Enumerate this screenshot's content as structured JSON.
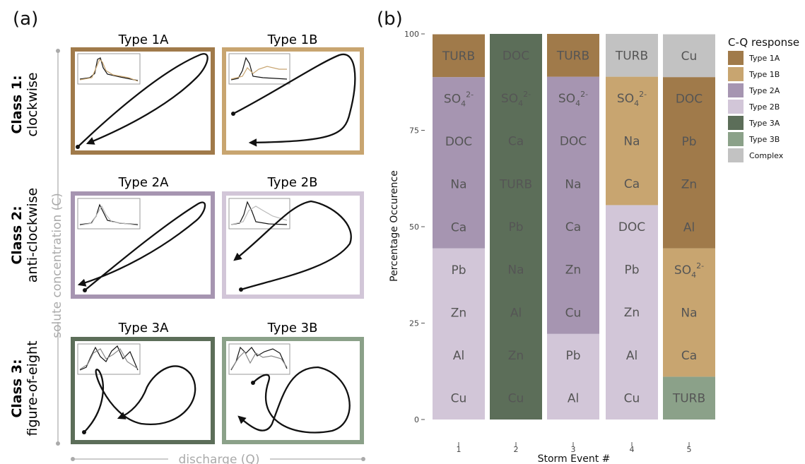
{
  "panel_a": {
    "label": "(a)",
    "y_axis_label": "solute concentration (C)",
    "x_axis_label": "discharge (Q)",
    "classes": [
      {
        "name": "Class 1:",
        "desc": "clockwise",
        "types": [
          {
            "label": "Type 1A",
            "color": "#A07A4A"
          },
          {
            "label": "Type 1B",
            "color": "#C8A570"
          }
        ]
      },
      {
        "name": "Class 2:",
        "desc": "anti-clockwise",
        "types": [
          {
            "label": "Type 2A",
            "color": "#A695B1"
          },
          {
            "label": "Type 2B",
            "color": "#D2C6D8"
          }
        ]
      },
      {
        "name": "Class 3:",
        "desc": "figure-of-eight",
        "types": [
          {
            "label": "Type 3A",
            "color": "#5C6E59"
          },
          {
            "label": "Type 3B",
            "color": "#8BA189"
          }
        ]
      }
    ]
  },
  "panel_b": {
    "label": "(b)",
    "chart_data": {
      "type": "bar",
      "stacked": true,
      "xlabel": "Storm Event #",
      "ylabel": "Percentage Occurence",
      "ylim": [
        0,
        100
      ],
      "yticks": [
        0,
        25,
        50,
        75,
        100
      ],
      "categories": [
        "1",
        "2",
        "3",
        "4",
        "5"
      ],
      "legend": {
        "title": "C-Q response",
        "position": "right",
        "entries": [
          {
            "name": "Type 1A",
            "color": "#A07A4A"
          },
          {
            "name": "Type 1B",
            "color": "#C8A570"
          },
          {
            "name": "Type 2A",
            "color": "#A695B1"
          },
          {
            "name": "Type 2B",
            "color": "#D2C6D8"
          },
          {
            "name": "Type 3A",
            "color": "#5C6E59"
          },
          {
            "name": "Type 3B",
            "color": "#8BA189"
          },
          {
            "name": "Complex",
            "color": "#C2C2C2"
          }
        ]
      },
      "stacks": [
        {
          "event": "1",
          "segments": [
            {
              "type": "Type 2B",
              "value": 44.4,
              "labels": [
                "Cu",
                "Al",
                "Zn",
                "Pb"
              ]
            },
            {
              "type": "Type 2A",
              "value": 44.4,
              "labels": [
                "Ca",
                "Na",
                "DOC",
                "SO4"
              ]
            },
            {
              "type": "Type 1A",
              "value": 11.1,
              "labels": [
                "TURB"
              ]
            }
          ]
        },
        {
          "event": "2",
          "segments": [
            {
              "type": "Type 3A",
              "value": 100,
              "labels": [
                "Cu",
                "Zn",
                "Al",
                "Na",
                "Pb",
                "TURB",
                "Ca",
                "SO4",
                "DOC"
              ]
            }
          ]
        },
        {
          "event": "3",
          "segments": [
            {
              "type": "Type 2B",
              "value": 22.2,
              "labels": [
                "Al",
                "Pb"
              ]
            },
            {
              "type": "Type 2A",
              "value": 66.7,
              "labels": [
                "Cu",
                "Zn",
                "Ca",
                "Na",
                "DOC",
                "SO4"
              ]
            },
            {
              "type": "Type 1A",
              "value": 11.1,
              "labels": [
                "TURB"
              ]
            }
          ]
        },
        {
          "event": "4",
          "segments": [
            {
              "type": "Type 2B",
              "value": 55.6,
              "labels": [
                "Cu",
                "Al",
                "Zn",
                "Pb",
                "DOC"
              ]
            },
            {
              "type": "Type 1B",
              "value": 33.3,
              "labels": [
                "Ca",
                "Na",
                "SO4"
              ]
            },
            {
              "type": "Complex",
              "value": 11.1,
              "labels": [
                "TURB"
              ]
            }
          ]
        },
        {
          "event": "5",
          "segments": [
            {
              "type": "Type 3B",
              "value": 11.1,
              "labels": [
                "TURB"
              ]
            },
            {
              "type": "Type 1B",
              "value": 33.3,
              "labels": [
                "Ca",
                "Na",
                "SO4"
              ]
            },
            {
              "type": "Type 1A",
              "value": 44.4,
              "labels": [
                "Al",
                "Zn",
                "Pb",
                "DOC"
              ]
            },
            {
              "type": "Complex",
              "value": 11.1,
              "labels": [
                "Cu"
              ]
            }
          ]
        }
      ]
    }
  }
}
